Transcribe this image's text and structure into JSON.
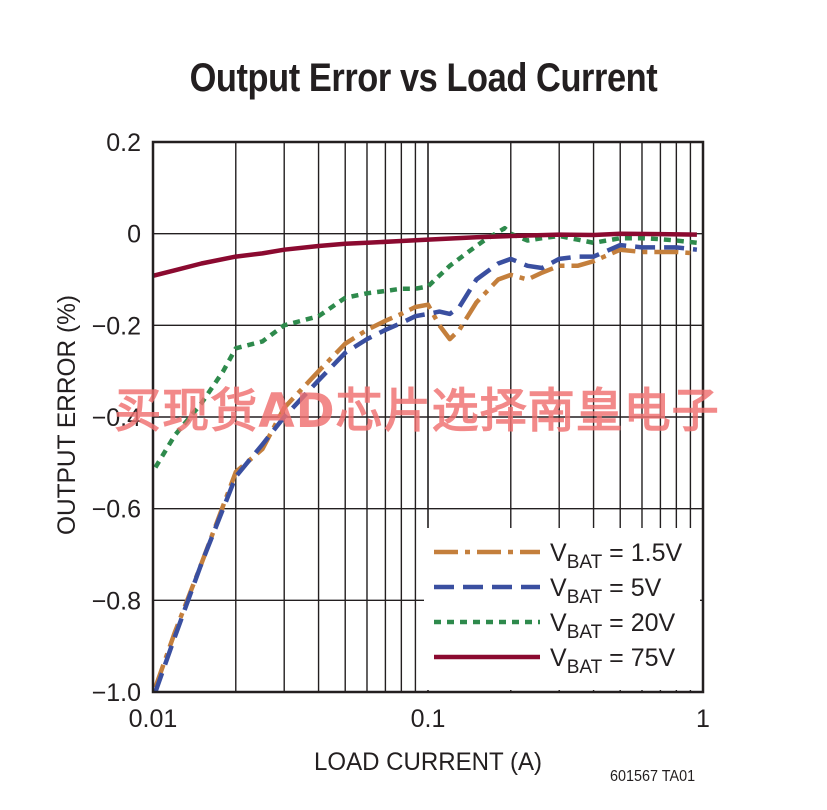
{
  "chart_data": {
    "type": "line",
    "title": "Output Error vs Load Current",
    "xlabel": "LOAD CURRENT (A)",
    "ylabel": "OUTPUT ERROR (%)",
    "xscale": "log",
    "xlim": [
      0.01,
      1
    ],
    "ylim": [
      -1.0,
      0.2
    ],
    "x_ticks": [
      {
        "value": 0.01,
        "label": "0.01"
      },
      {
        "value": 0.1,
        "label": "0.1"
      },
      {
        "value": 1,
        "label": "1"
      }
    ],
    "y_ticks": [
      {
        "value": 0.2,
        "label": "0.2"
      },
      {
        "value": 0,
        "label": "0"
      },
      {
        "value": -0.2,
        "label": "−0.2"
      },
      {
        "value": -0.4,
        "label": "−0.4"
      },
      {
        "value": -0.6,
        "label": "−0.6"
      },
      {
        "value": -0.8,
        "label": "−0.8"
      },
      {
        "value": -1.0,
        "label": "−1.0"
      }
    ],
    "grid": true,
    "legend_position": "bottom-right",
    "series": [
      {
        "name_main": "V",
        "name_sub": "BAT",
        "name_rest": " = 1.5V",
        "color": "#c47f3c",
        "style": "dashdot",
        "x": [
          0.0102,
          0.012,
          0.015,
          0.02,
          0.025,
          0.03,
          0.04,
          0.05,
          0.06,
          0.07,
          0.08,
          0.09,
          0.1,
          0.11,
          0.12,
          0.13,
          0.15,
          0.18,
          0.2,
          0.23,
          0.26,
          0.3,
          0.35,
          0.4,
          0.5,
          0.6,
          0.7,
          0.8,
          0.95
        ],
        "y": [
          -0.99,
          -0.87,
          -0.72,
          -0.52,
          -0.47,
          -0.38,
          -0.3,
          -0.24,
          -0.21,
          -0.19,
          -0.175,
          -0.16,
          -0.155,
          -0.2,
          -0.23,
          -0.21,
          -0.15,
          -0.1,
          -0.09,
          -0.1,
          -0.085,
          -0.07,
          -0.07,
          -0.06,
          -0.035,
          -0.04,
          -0.04,
          -0.04,
          -0.043
        ]
      },
      {
        "name_main": "V",
        "name_sub": "BAT",
        "name_rest": " = 5V",
        "color": "#3a4fa0",
        "style": "dash",
        "x": [
          0.0102,
          0.012,
          0.015,
          0.02,
          0.025,
          0.03,
          0.04,
          0.05,
          0.06,
          0.07,
          0.08,
          0.09,
          0.1,
          0.11,
          0.12,
          0.13,
          0.15,
          0.18,
          0.2,
          0.23,
          0.26,
          0.3,
          0.35,
          0.4,
          0.5,
          0.6,
          0.7,
          0.8,
          0.95
        ],
        "y": [
          -1.0,
          -0.88,
          -0.72,
          -0.53,
          -0.46,
          -0.4,
          -0.32,
          -0.26,
          -0.23,
          -0.21,
          -0.195,
          -0.18,
          -0.175,
          -0.17,
          -0.175,
          -0.16,
          -0.1,
          -0.065,
          -0.055,
          -0.07,
          -0.075,
          -0.055,
          -0.05,
          -0.05,
          -0.025,
          -0.03,
          -0.03,
          -0.03,
          -0.035
        ]
      },
      {
        "name_main": "V",
        "name_sub": "BAT",
        "name_rest": " = 20V",
        "color": "#2e8a4c",
        "style": "dot",
        "x": [
          0.0102,
          0.012,
          0.015,
          0.018,
          0.02,
          0.025,
          0.03,
          0.04,
          0.05,
          0.06,
          0.07,
          0.08,
          0.09,
          0.1,
          0.12,
          0.14,
          0.16,
          0.19,
          0.2,
          0.23,
          0.26,
          0.3,
          0.4,
          0.5,
          0.6,
          0.7,
          0.8,
          0.95
        ],
        "y": [
          -0.51,
          -0.44,
          -0.37,
          -0.3,
          -0.25,
          -0.235,
          -0.2,
          -0.18,
          -0.14,
          -0.13,
          -0.125,
          -0.12,
          -0.12,
          -0.115,
          -0.07,
          -0.04,
          -0.015,
          0.012,
          0.0,
          -0.015,
          -0.01,
          -0.005,
          -0.02,
          -0.01,
          -0.01,
          -0.012,
          -0.015,
          -0.02
        ]
      },
      {
        "name_main": "V",
        "name_sub": "BAT",
        "name_rest": " = 75V",
        "color": "#8b0a30",
        "style": "solid",
        "x": [
          0.01,
          0.012,
          0.015,
          0.02,
          0.025,
          0.03,
          0.04,
          0.05,
          0.06,
          0.08,
          0.1,
          0.15,
          0.2,
          0.3,
          0.4,
          0.5,
          0.7,
          0.95
        ],
        "y": [
          -0.092,
          -0.08,
          -0.065,
          -0.05,
          -0.043,
          -0.035,
          -0.027,
          -0.022,
          -0.02,
          -0.016,
          -0.013,
          -0.008,
          -0.005,
          -0.002,
          -0.003,
          0.0,
          -0.001,
          -0.002
        ]
      }
    ]
  },
  "footnote": "601567 TA01",
  "watermark": "买现货AD芯片选择南皇电子"
}
